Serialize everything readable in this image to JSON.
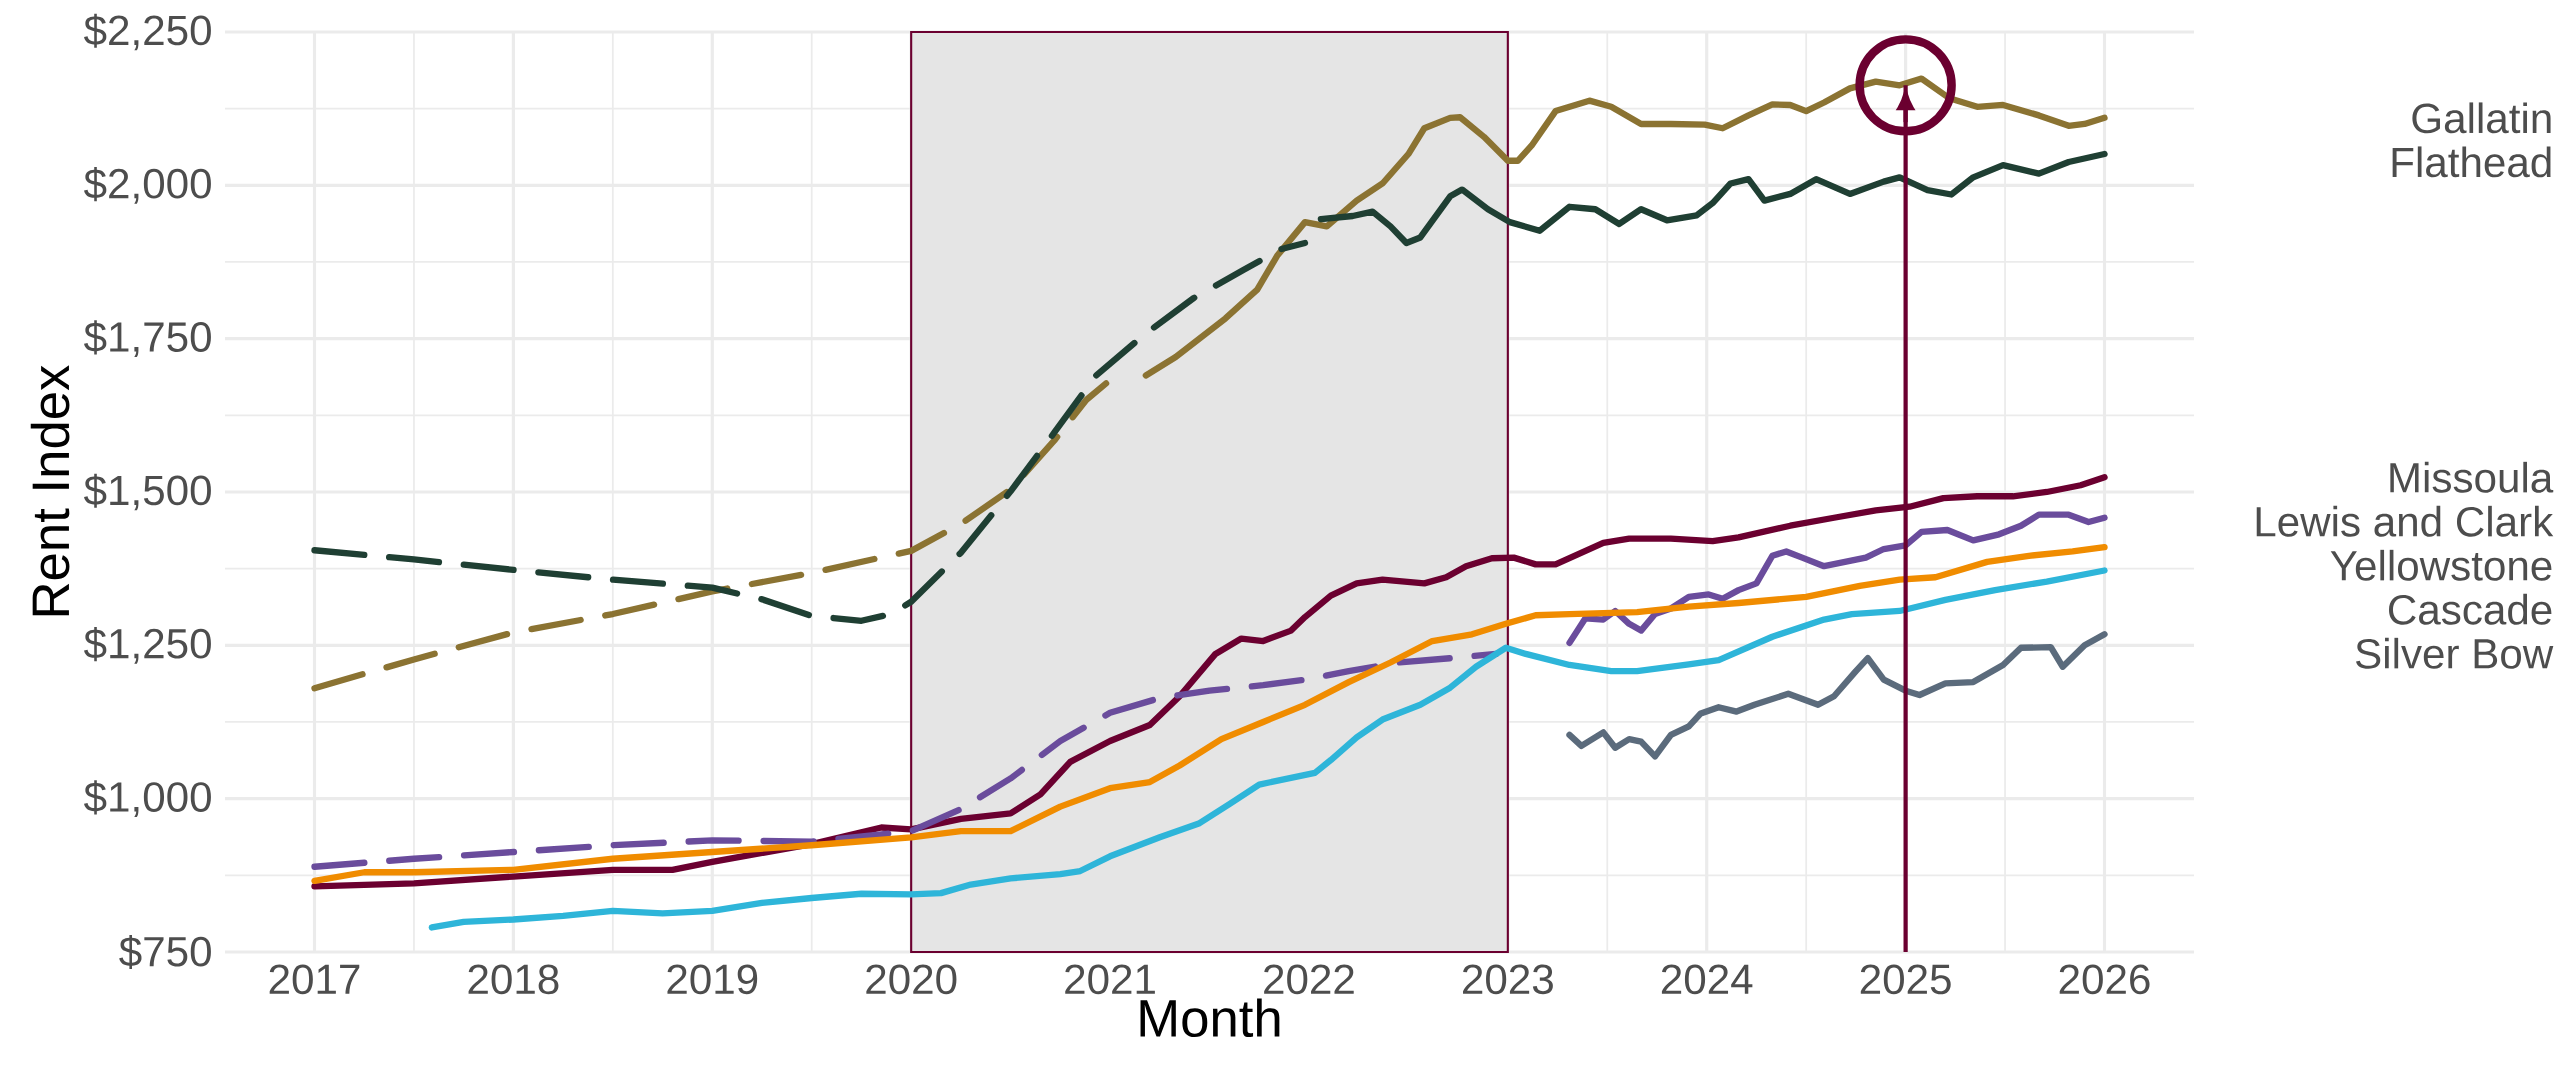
{
  "chart_data": {
    "type": "line",
    "xlabel": "Month",
    "ylabel": "Rent Index",
    "xlim": [
      2016.55,
      2026.45
    ],
    "ylim": [
      750,
      2250
    ],
    "xticks": [
      2017,
      2018,
      2019,
      2020,
      2021,
      2022,
      2023,
      2024,
      2025,
      2026
    ],
    "yticks": [
      {
        "value": 750,
        "label": "$750"
      },
      {
        "value": 1000,
        "label": "$1,000"
      },
      {
        "value": 1250,
        "label": "$1,250"
      },
      {
        "value": 1500,
        "label": "$1,500"
      },
      {
        "value": 1750,
        "label": "$1,750"
      },
      {
        "value": 2000,
        "label": "$2,000"
      },
      {
        "value": 2250,
        "label": "$2,250"
      }
    ],
    "grid": true,
    "bands": [
      {
        "axis": "x",
        "from": 2020,
        "to": 2023,
        "color": "#e5e5e5"
      }
    ],
    "ref_lines": [
      {
        "axis": "x",
        "value": 2025,
        "color": "#6b0030"
      }
    ],
    "series": [
      {
        "name": "Gallatin",
        "color": "#8b7332",
        "x": [
          2021.18,
          2021.33,
          2021.58,
          2021.74,
          2021.84,
          2021.98,
          2022.09,
          2022.24,
          2022.37,
          2022.5,
          2022.58,
          2022.71,
          2022.76,
          2022.88,
          2023.0,
          2023.05,
          2023.12,
          2023.24,
          2023.41,
          2023.52,
          2023.67,
          2023.82,
          2023.99,
          2024.08,
          2024.21,
          2024.33,
          2024.42,
          2024.5,
          2024.59,
          2024.72,
          2024.85,
          2024.97,
          2025.08,
          2025.22,
          2025.36,
          2025.49,
          2025.67,
          2025.82,
          2025.9,
          2026
        ],
        "values": [
          1690,
          1720,
          1783,
          1830,
          1885,
          1940,
          1933,
          1975,
          2003,
          2051,
          2093,
          2110,
          2111,
          2079,
          2040,
          2040,
          2065,
          2121,
          2138,
          2128,
          2100,
          2100,
          2099,
          2093,
          2114,
          2132,
          2131,
          2121,
          2135,
          2158,
          2169,
          2163,
          2174,
          2142,
          2128,
          2131,
          2114,
          2097,
          2100,
          2110
        ]
      },
      {
        "color": "#8b7332",
        "line_style": "dashed",
        "x": [
          2017,
          2017.5,
          2018,
          2018.5,
          2019,
          2019.5,
          2020,
          2020.25,
          2020.5,
          2020.72,
          2020.88,
          2020.98
        ],
        "values": [
          1180,
          1227,
          1271,
          1301,
          1338,
          1368,
          1404,
          1448,
          1504,
          1584,
          1650,
          1677
        ]
      },
      {
        "name": "Flathead",
        "color": "#1f3f33",
        "x": [
          2022.06,
          2022.22,
          2022.32,
          2022.41,
          2022.49,
          2022.56,
          2022.71,
          2022.77,
          2022.9,
          2023.01,
          2023.16,
          2023.31,
          2023.44,
          2023.56,
          2023.67,
          2023.8,
          2023.95,
          2024.03,
          2024.12,
          2024.21,
          2024.29,
          2024.42,
          2024.55,
          2024.72,
          2024.89,
          2024.97,
          2025.11,
          2025.23,
          2025.34,
          2025.49,
          2025.67,
          2025.82,
          2026
        ],
        "values": [
          1945,
          1950,
          1957,
          1933,
          1906,
          1915,
          1982,
          1993,
          1961,
          1940,
          1926,
          1965,
          1961,
          1937,
          1961,
          1943,
          1951,
          1971,
          2003,
          2010,
          1975,
          1986,
          2010,
          1986,
          2006,
          2013,
          1992,
          1985,
          2013,
          2033,
          2019,
          2038,
          2051
        ]
      },
      {
        "color": "#1f3f33",
        "line_style": "dashed",
        "x": [
          2017,
          2017.5,
          2018,
          2018.5,
          2019,
          2019.25,
          2019.5,
          2019.75,
          2019.9,
          2020,
          2020.25,
          2020.5,
          2020.72,
          2020.93,
          2021.17,
          2021.42,
          2021.67,
          2021.86,
          2021.98
        ],
        "values": [
          1405,
          1390,
          1373,
          1357,
          1344,
          1325,
          1298,
          1290,
          1301,
          1321,
          1401,
          1501,
          1597,
          1690,
          1756,
          1816,
          1862,
          1896,
          1906
        ]
      },
      {
        "name": "Missoula",
        "color": "#6b0030",
        "x": [
          2017,
          2017.5,
          2018,
          2018.5,
          2018.8,
          2019,
          2019.5,
          2019.85,
          2020,
          2020.25,
          2020.5,
          2020.65,
          2020.8,
          2021,
          2021.2,
          2021.35,
          2021.53,
          2021.66,
          2021.77,
          2021.91,
          2021.98,
          2022.11,
          2022.24,
          2022.37,
          2022.58,
          2022.69,
          2022.79,
          2022.92,
          2023.03,
          2023.14,
          2023.24,
          2023.48,
          2023.61,
          2023.82,
          2024.03,
          2024.16,
          2024.42,
          2024.64,
          2024.85,
          2025.02,
          2025.19,
          2025.36,
          2025.54,
          2025.71,
          2025.88,
          2026
        ],
        "values": [
          857,
          862,
          873,
          884,
          884,
          897,
          926,
          953,
          950,
          967,
          976,
          1007,
          1060,
          1094,
          1120,
          1167,
          1236,
          1261,
          1257,
          1274,
          1296,
          1331,
          1351,
          1357,
          1351,
          1361,
          1379,
          1392,
          1393,
          1382,
          1382,
          1417,
          1424,
          1424,
          1420,
          1426,
          1445,
          1458,
          1470,
          1476,
          1490,
          1493,
          1493,
          1500,
          1511,
          1524
        ]
      },
      {
        "name": "Lewis and Clark",
        "color": "#6a4c9c",
        "x": [
          2023.31,
          2023.39,
          2023.48,
          2023.54,
          2023.61,
          2023.67,
          2023.74,
          2023.82,
          2023.91,
          2024.01,
          2024.08,
          2024.16,
          2024.25,
          2024.33,
          2024.4,
          2024.48,
          2024.59,
          2024.68,
          2024.8,
          2024.89,
          2025,
          2025.08,
          2025.21,
          2025.34,
          2025.47,
          2025.58,
          2025.67,
          2025.82,
          2025.92,
          2026
        ],
        "values": [
          1254,
          1294,
          1292,
          1306,
          1285,
          1274,
          1301,
          1310,
          1329,
          1333,
          1326,
          1340,
          1351,
          1396,
          1403,
          1393,
          1379,
          1385,
          1393,
          1407,
          1413,
          1435,
          1438,
          1421,
          1431,
          1445,
          1463,
          1463,
          1451,
          1458
        ]
      },
      {
        "color": "#6a4c9c",
        "line_style": "dashed",
        "x": [
          2017,
          2017.5,
          2018,
          2018.5,
          2019,
          2019.5,
          2020,
          2020.25,
          2020.5,
          2020.75,
          2021,
          2021.25,
          2021.5,
          2021.77,
          2021.98,
          2022.2,
          2022.45,
          2022.71,
          2022.94
        ],
        "values": [
          889,
          902,
          913,
          924,
          932,
          930,
          947,
          983,
          1033,
          1094,
          1140,
          1164,
          1176,
          1185,
          1194,
          1208,
          1222,
          1229,
          1236
        ]
      },
      {
        "name": "Yellowstone",
        "color": "#f08c00",
        "x": [
          2017,
          2017.25,
          2017.5,
          2018,
          2018.5,
          2019,
          2019.5,
          2020,
          2020.25,
          2020.5,
          2020.75,
          2021,
          2021.2,
          2021.35,
          2021.56,
          2021.77,
          2021.98,
          2022.2,
          2022.41,
          2022.62,
          2022.82,
          2022.99,
          2023.14,
          2023.31,
          2023.65,
          2023.91,
          2024.16,
          2024.5,
          2024.77,
          2024.97,
          2025.15,
          2025.41,
          2025.62,
          2025.84,
          2026
        ],
        "values": [
          866,
          880,
          880,
          884,
          902,
          913,
          924,
          937,
          947,
          947,
          987,
          1017,
          1027,
          1054,
          1097,
          1125,
          1153,
          1190,
          1222,
          1257,
          1268,
          1285,
          1299,
          1301,
          1304,
          1313,
          1319,
          1329,
          1347,
          1357,
          1361,
          1386,
          1396,
          1403,
          1410
        ]
      },
      {
        "name": "Cascade",
        "color": "#2eb5d9",
        "x": [
          2017.59,
          2017.75,
          2018,
          2018.25,
          2018.5,
          2018.75,
          2019,
          2019.25,
          2019.5,
          2019.75,
          2020,
          2020.15,
          2020.3,
          2020.5,
          2020.75,
          2020.85,
          2021,
          2021.25,
          2021.45,
          2021.6,
          2021.75,
          2022.03,
          2022.11,
          2022.24,
          2022.37,
          2022.56,
          2022.71,
          2022.84,
          2022.99,
          2023.09,
          2023.31,
          2023.52,
          2023.65,
          2023.91,
          2024.06,
          2024.33,
          2024.59,
          2024.73,
          2024.97,
          2025.2,
          2025.45,
          2025.71,
          2026
        ],
        "values": [
          790,
          799,
          803,
          809,
          817,
          813,
          817,
          830,
          838,
          845,
          844,
          846,
          860,
          870,
          877,
          882,
          906,
          937,
          960,
          991,
          1023,
          1042,
          1063,
          1100,
          1129,
          1153,
          1181,
          1215,
          1246,
          1236,
          1218,
          1208,
          1208,
          1219,
          1226,
          1264,
          1292,
          1301,
          1306,
          1324,
          1340,
          1354,
          1372
        ]
      },
      {
        "name": "Silver Bow",
        "color": "#5b6b7c",
        "x": [
          2023.31,
          2023.37,
          2023.48,
          2023.54,
          2023.61,
          2023.67,
          2023.74,
          2023.82,
          2023.91,
          2023.97,
          2024.06,
          2024.15,
          2024.24,
          2024.41,
          2024.56,
          2024.64,
          2024.75,
          2024.81,
          2024.89,
          2025,
          2025.07,
          2025.2,
          2025.34,
          2025.49,
          2025.58,
          2025.73,
          2025.79,
          2025.9,
          2026
        ],
        "values": [
          1104,
          1086,
          1108,
          1083,
          1097,
          1093,
          1069,
          1104,
          1118,
          1139,
          1149,
          1142,
          1153,
          1171,
          1153,
          1167,
          1208,
          1229,
          1194,
          1176,
          1169,
          1188,
          1190,
          1218,
          1246,
          1247,
          1215,
          1250,
          1268
        ]
      }
    ]
  }
}
